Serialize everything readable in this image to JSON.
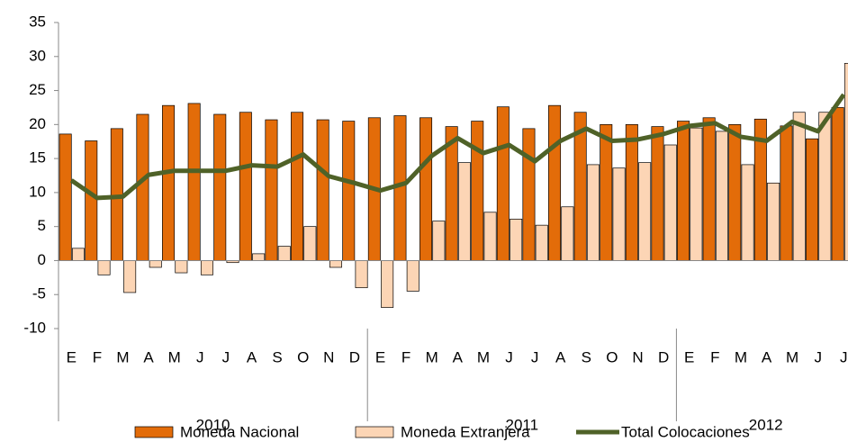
{
  "chart_data": {
    "type": "bar",
    "categories": [
      "E",
      "F",
      "M",
      "A",
      "M",
      "J",
      "J",
      "A",
      "S",
      "O",
      "N",
      "D",
      "E",
      "F",
      "M",
      "A",
      "M",
      "J",
      "J",
      "A",
      "S",
      "O",
      "N",
      "D",
      "E",
      "F",
      "M",
      "A",
      "M",
      "J",
      "J"
    ],
    "year_groups": [
      "2010",
      "2011",
      "2012"
    ],
    "series": [
      {
        "name": "Moneda Nacional",
        "color": "#e36c09",
        "kind": "bar",
        "values": [
          18.6,
          17.6,
          19.4,
          21.5,
          22.8,
          23.1,
          21.5,
          21.8,
          20.7,
          21.8,
          20.7,
          20.5,
          21,
          21.3,
          21,
          19.7,
          20.5,
          22.6,
          19.4,
          22.8,
          21.8,
          20,
          20,
          19.7,
          20.5,
          21,
          20,
          20.8,
          19.8,
          17.9,
          22.5
        ]
      },
      {
        "name": "Moneda Extranjera",
        "color": "#fcd5b5",
        "kind": "bar",
        "values": [
          1.8,
          -2.1,
          -4.7,
          -1,
          -1.8,
          -2.1,
          -0.3,
          1,
          2.1,
          5,
          -1,
          -4,
          -6.9,
          -4.5,
          5.8,
          14.4,
          7.1,
          6.1,
          5.2,
          7.9,
          14.1,
          13.6,
          14.4,
          17,
          19.5,
          19,
          14.1,
          11.4,
          21.8,
          21.8,
          29
        ]
      },
      {
        "name": "Total Colocaciones",
        "color": "#4f6228",
        "kind": "line",
        "values": [
          11.8,
          9.2,
          9.4,
          12.6,
          13.2,
          13.2,
          13.2,
          14,
          13.8,
          15.6,
          12.4,
          11.4,
          10.3,
          11.4,
          15.4,
          18,
          15.8,
          17,
          14.6,
          17.6,
          19.4,
          17.6,
          17.8,
          18.6,
          19.8,
          20.2,
          18.2,
          17.6,
          20.4,
          19,
          24.4
        ]
      }
    ],
    "ylim": [
      -10,
      35
    ],
    "yticks": [
      -10,
      -5,
      0,
      5,
      10,
      15,
      20,
      25,
      30,
      35
    ]
  }
}
